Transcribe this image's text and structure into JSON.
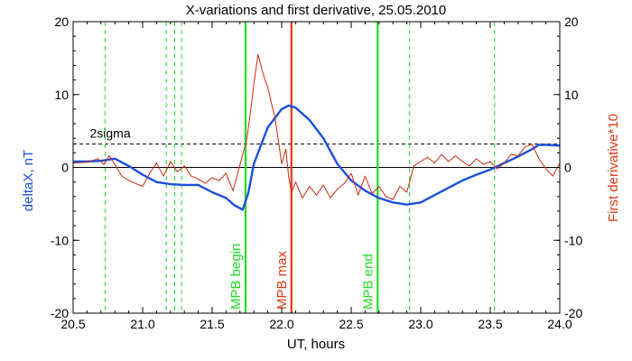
{
  "chart_data": {
    "type": "line",
    "title": "X-variations and first derivative, 25.05.2010",
    "xlabel": "UT, hours",
    "ylabel_left": "deltaX, nT",
    "ylabel_right": "First derivative*10",
    "xlim": [
      20.5,
      24.0
    ],
    "ylim": [
      -20,
      20
    ],
    "ylim_right": [
      -20,
      20
    ],
    "x_ticks": [
      "20.5",
      "21.0",
      "21.5",
      "22.0",
      "22.5",
      "23.0",
      "23.5",
      "24.0"
    ],
    "y_ticks": [
      "-20",
      "-10",
      "0",
      "10",
      "20"
    ],
    "grid": false,
    "threshold": {
      "label": "2sigma",
      "value": 3.2
    },
    "markers": [
      {
        "label": "MPB begin",
        "x": 21.74,
        "color": "#22dd22"
      },
      {
        "label": "MPB max",
        "x": 22.07,
        "color": "#e03a12"
      },
      {
        "label": "MPB end",
        "x": 22.69,
        "color": "#22dd22"
      }
    ],
    "dashed_lines_x": [
      20.73,
      21.17,
      21.23,
      21.28,
      22.92,
      23.53
    ],
    "colors": {
      "deltaX": "#1a4fe0",
      "derivative": "#cc2a10",
      "mpb": "#22dd22",
      "mpb_max": "#e03a12",
      "axis": "#000000",
      "label_blue": "#1a4fe0",
      "label_red": "#e03a12"
    },
    "series": [
      {
        "name": "deltaX, nT",
        "axis": "left",
        "x": [
          20.5,
          20.6,
          20.7,
          20.8,
          20.9,
          21.0,
          21.1,
          21.2,
          21.3,
          21.4,
          21.5,
          21.6,
          21.66,
          21.72,
          21.76,
          21.8,
          21.9,
          22.0,
          22.05,
          22.1,
          22.2,
          22.3,
          22.4,
          22.5,
          22.6,
          22.7,
          22.8,
          22.9,
          23.0,
          23.1,
          23.2,
          23.3,
          23.4,
          23.5,
          23.6,
          23.7,
          23.8,
          23.85,
          23.9,
          24.0
        ],
        "y": [
          0.8,
          0.8,
          0.9,
          1.2,
          0.2,
          -1.0,
          -2.0,
          -2.3,
          -2.4,
          -2.4,
          -3.4,
          -4.2,
          -5.2,
          -5.8,
          -3.5,
          0.5,
          5.5,
          8.0,
          8.5,
          8.2,
          6.5,
          4.0,
          0.5,
          -1.8,
          -3.2,
          -4.2,
          -4.8,
          -5.1,
          -4.8,
          -3.8,
          -2.8,
          -1.8,
          -1.0,
          -0.3,
          0.6,
          1.5,
          2.5,
          3.1,
          3.1,
          3.0
        ]
      },
      {
        "name": "First derivative*10",
        "axis": "right",
        "x": [
          20.5,
          20.6,
          20.68,
          20.72,
          20.76,
          20.8,
          20.85,
          20.9,
          20.95,
          21.0,
          21.05,
          21.1,
          21.15,
          21.2,
          21.25,
          21.3,
          21.35,
          21.4,
          21.45,
          21.5,
          21.55,
          21.6,
          21.65,
          21.7,
          21.72,
          21.75,
          21.78,
          21.8,
          21.83,
          21.85,
          21.88,
          21.9,
          21.93,
          21.95,
          21.98,
          22.0,
          22.03,
          22.05,
          22.07,
          22.1,
          22.15,
          22.2,
          22.25,
          22.3,
          22.35,
          22.4,
          22.45,
          22.5,
          22.55,
          22.6,
          22.65,
          22.7,
          22.75,
          22.8,
          22.85,
          22.9,
          22.95,
          23.0,
          23.05,
          23.1,
          23.15,
          23.2,
          23.25,
          23.3,
          23.35,
          23.4,
          23.45,
          23.5,
          23.55,
          23.6,
          23.65,
          23.7,
          23.75,
          23.8,
          23.85,
          23.9,
          23.95,
          24.0
        ],
        "y": [
          0.6,
          0.7,
          1.2,
          0.4,
          1.6,
          0.4,
          -1.2,
          -1.8,
          -2.2,
          -2.6,
          -0.8,
          0.6,
          -1.2,
          0.8,
          -0.6,
          0.2,
          -1.2,
          -1.6,
          -2.2,
          -1.4,
          -1.8,
          -0.8,
          -3.2,
          0.4,
          1.8,
          4.0,
          8.2,
          11.5,
          15.5,
          14.0,
          12.0,
          11.0,
          8.5,
          7.0,
          3.2,
          0.5,
          2.5,
          -1.2,
          -3.5,
          -2.0,
          -4.2,
          -2.6,
          -3.8,
          -2.4,
          -4.2,
          -3.0,
          -2.2,
          -0.8,
          -3.8,
          -1.2,
          -3.6,
          -2.6,
          -4.0,
          -4.4,
          -2.6,
          -3.4,
          0.2,
          0.8,
          1.4,
          0.6,
          1.8,
          0.8,
          1.6,
          0.8,
          0.2,
          1.2,
          0.4,
          0.8,
          -0.2,
          0.6,
          1.8,
          1.6,
          2.8,
          3.2,
          1.2,
          -0.2,
          -1.2,
          0.6
        ]
      }
    ]
  }
}
